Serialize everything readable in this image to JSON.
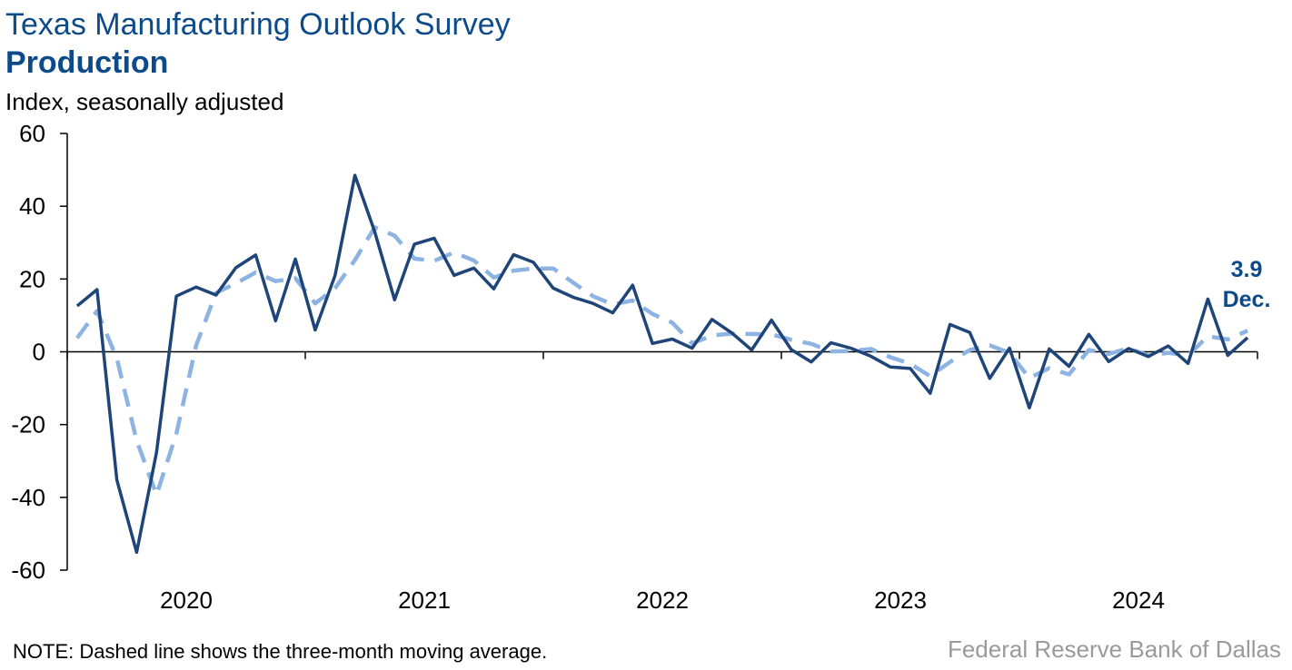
{
  "header": {
    "title": "Texas Manufacturing Outlook Survey",
    "subtitle": "Production",
    "ylabel": "Index, seasonally adjusted"
  },
  "footer": {
    "note": "NOTE: Dashed line shows the three-month moving average.",
    "source": "Federal Reserve Bank of Dallas"
  },
  "annotation": {
    "value": "3.9",
    "month": "Dec."
  },
  "colors": {
    "series_solid": "#1f4478",
    "series_dashed": "#8db3e2",
    "title": "#0d4a8a",
    "source": "#9a9a9a"
  },
  "chart_data": {
    "type": "line",
    "title": "Texas Manufacturing Outlook Survey",
    "subtitle": "Production",
    "ylabel": "Index, seasonally adjusted",
    "xlabel": "",
    "ylim": [
      -60,
      60
    ],
    "yticks": [
      60,
      40,
      20,
      0,
      -20,
      -40,
      -60
    ],
    "year_labels": [
      "2020",
      "2021",
      "2022",
      "2023",
      "2024"
    ],
    "x_start": "2020-01",
    "x_end": "2024-12",
    "grid": false,
    "series": [
      {
        "style": "solid",
        "values": [
          12.6,
          17.1,
          -35.2,
          -55.1,
          -27.6,
          15.3,
          17.8,
          15.6,
          23.1,
          26.6,
          8.5,
          25.5,
          6.0,
          21.0,
          48.5,
          33.0,
          14.3,
          29.6,
          31.2,
          21.0,
          23.0,
          17.3,
          26.7,
          24.6,
          17.5,
          15.0,
          13.3,
          10.7,
          18.3,
          2.3,
          3.5,
          1.0,
          8.9,
          5.2,
          0.5,
          8.7,
          0.6,
          -2.8,
          2.5,
          1.0,
          -1.2,
          -4.2,
          -4.6,
          -11.4,
          7.5,
          5.3,
          -7.3,
          1.0,
          -15.4,
          0.8,
          -4.0,
          4.8,
          -2.7,
          0.9,
          -1.3,
          1.6,
          -3.2,
          14.5,
          -1.0,
          3.9
        ]
      },
      {
        "style": "dashed",
        "values": [
          3.8,
          11.2,
          -1.8,
          -24.4,
          -39.3,
          -22.5,
          1.8,
          16.2,
          18.8,
          21.8,
          19.4,
          20.2,
          13.3,
          17.5,
          25.2,
          34.2,
          31.9,
          25.6,
          25.0,
          27.3,
          25.1,
          20.4,
          22.3,
          22.9,
          22.9,
          19.0,
          15.3,
          13.0,
          14.1,
          10.4,
          8.0,
          2.3,
          4.5,
          5.0,
          4.9,
          4.8,
          3.3,
          2.2,
          0.1,
          0.2,
          0.8,
          -1.5,
          -3.3,
          -6.7,
          -2.8,
          0.5,
          1.8,
          -0.3,
          -7.2,
          -4.5,
          -6.2,
          0.5,
          -0.6,
          1.0,
          -1.0,
          -0.3,
          -1.0,
          4.3,
          3.4,
          5.8
        ]
      }
    ]
  }
}
